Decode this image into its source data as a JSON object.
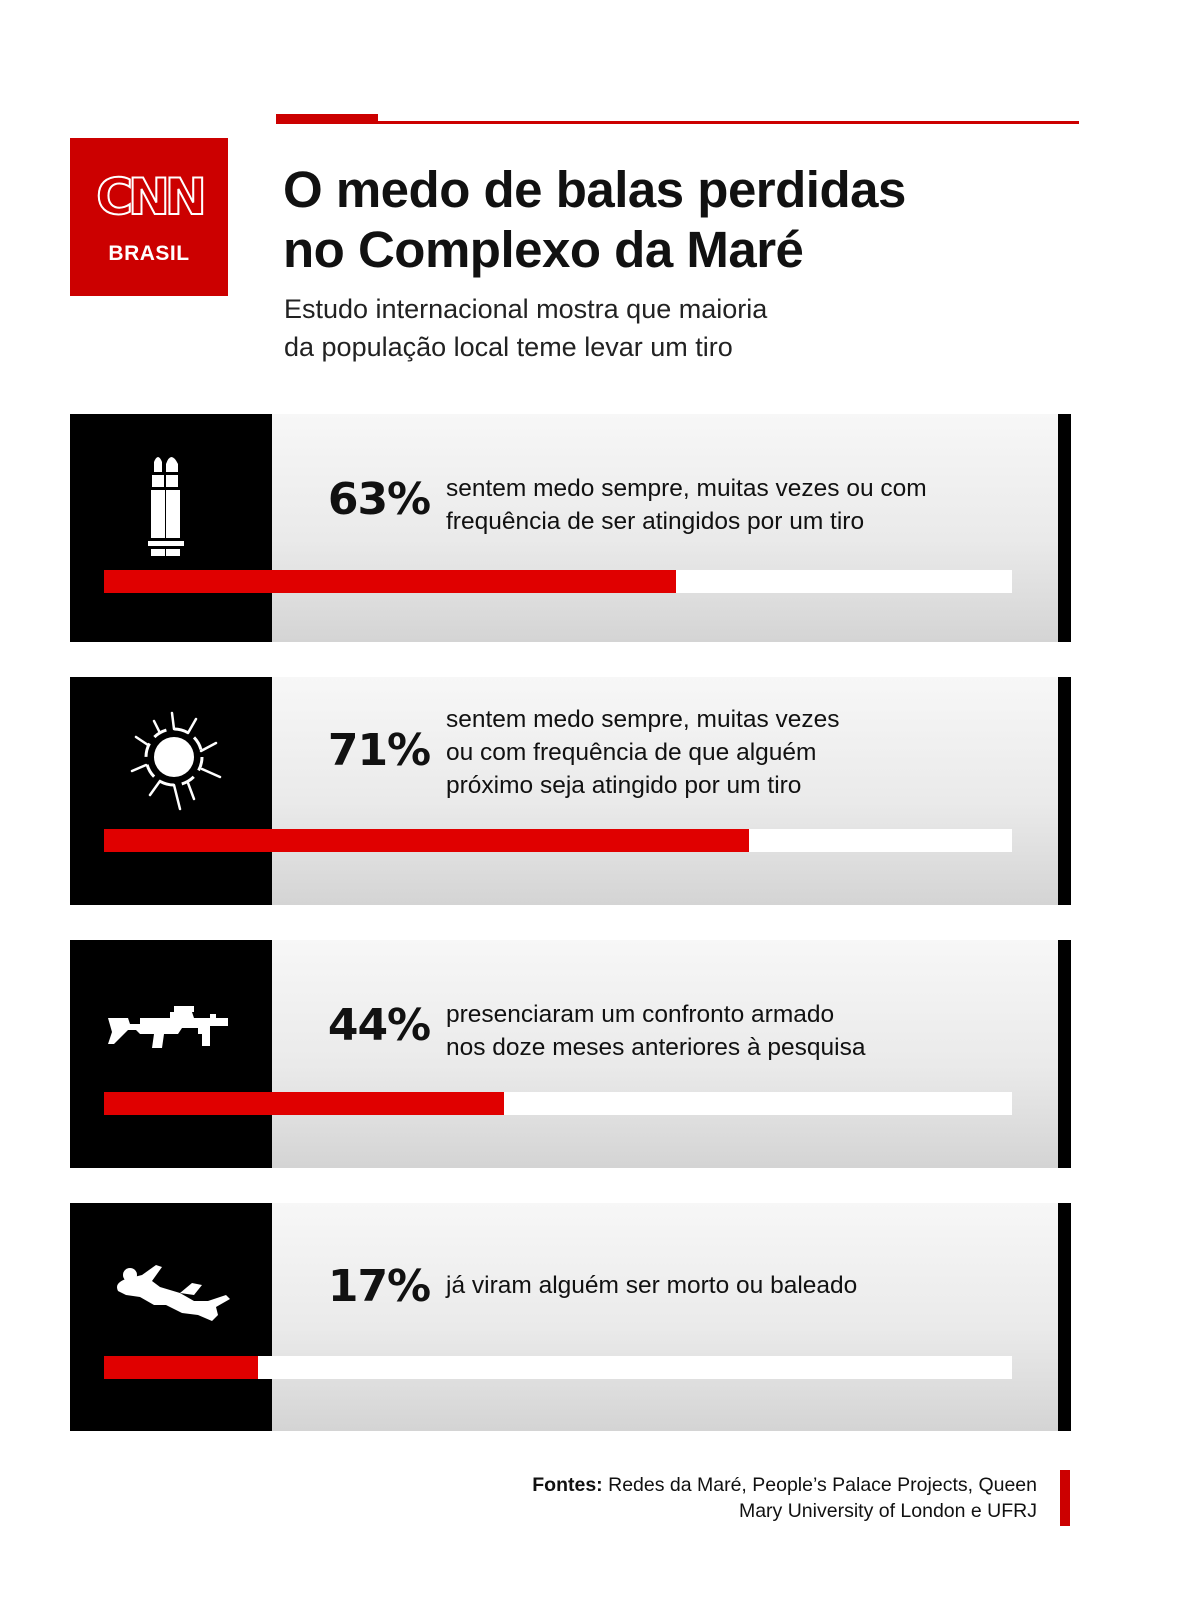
{
  "brand": {
    "logo_text": "CNN",
    "logo_sub": "BRASIL",
    "accent_color": "#cc0000",
    "bar_color": "#e00000"
  },
  "header": {
    "title_line1": "O medo de balas perdidas",
    "title_line2": "no Complexo da Maré",
    "subtitle_line1": "Estudo internacional mostra que maioria",
    "subtitle_line2": "da população local teme levar um tiro"
  },
  "chart_data": {
    "type": "bar",
    "orientation": "horizontal",
    "xlim": [
      0,
      100
    ],
    "grid": false,
    "unit": "%",
    "categories": [
      "sentem medo sempre, muitas vezes ou com frequência de ser atingidos por um tiro",
      "sentem medo sempre, muitas vezes ou com frequência de que alguém próximo seja atingido por um tiro",
      "presenciaram um confronto armado nos doze meses anteriores à pesquisa",
      "já viram alguém ser morto ou baleado"
    ],
    "values": [
      63,
      71,
      44,
      17
    ],
    "rows": [
      {
        "pct": "63%",
        "value": 63,
        "icon": "bullet-icon",
        "lines": [
          "sentem medo sempre, muitas vezes ou com",
          "frequência de ser atingidos por um tiro"
        ]
      },
      {
        "pct": "71%",
        "value": 71,
        "icon": "bullet-hole-icon",
        "lines": [
          "sentem medo sempre, muitas vezes",
          "ou com frequência de que alguém",
          "próximo seja atingido por um tiro"
        ]
      },
      {
        "pct": "44%",
        "value": 44,
        "icon": "rifle-icon",
        "lines": [
          "presenciaram um confronto armado",
          "nos doze meses anteriores à pesquisa"
        ]
      },
      {
        "pct": "17%",
        "value": 17,
        "icon": "fallen-person-icon",
        "lines": [
          "já viram alguém ser morto ou baleado"
        ]
      }
    ]
  },
  "footer": {
    "source_label": "Fontes:",
    "source_line1": "Redes da Maré, People’s Palace Projects, Queen",
    "source_line2": "Mary University of London e UFRJ"
  }
}
